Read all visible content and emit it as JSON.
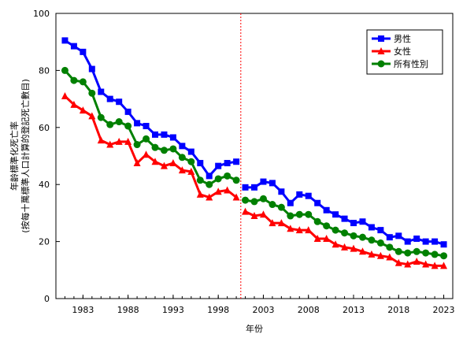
{
  "chart_data": {
    "type": "line",
    "xlabel": "年份",
    "ylabel_line1": "年齡標準化死亡率",
    "ylabel_line2": "(按每十萬標準人口計算的登記死亡數目)",
    "xlim": [
      1980,
      2024
    ],
    "ylim": [
      0,
      100
    ],
    "yticks": [
      0,
      20,
      40,
      60,
      80,
      100
    ],
    "xticks": [
      1983,
      1988,
      1993,
      1998,
      2003,
      2008,
      2013,
      2018,
      2023
    ],
    "break_year": 2000.5,
    "legend_position": "top-right",
    "grid": false,
    "series": [
      {
        "name": "男性",
        "color": "#0000ff",
        "marker": "square",
        "segments": [
          {
            "x": [
              1981,
              1982,
              1983,
              1984,
              1985,
              1986,
              1987,
              1988,
              1989,
              1990,
              1991,
              1992,
              1993,
              1994,
              1995,
              1996,
              1997,
              1998,
              1999,
              2000
            ],
            "y": [
              90.5,
              88.5,
              86.5,
              80.5,
              72.5,
              70.0,
              69.0,
              65.5,
              61.5,
              60.5,
              57.5,
              57.5,
              56.5,
              53.5,
              51.5,
              47.5,
              43.0,
              46.5,
              47.5,
              48.0
            ]
          },
          {
            "x": [
              2001,
              2002,
              2003,
              2004,
              2005,
              2006,
              2007,
              2008,
              2009,
              2010,
              2011,
              2012,
              2013,
              2014,
              2015,
              2016,
              2017,
              2018,
              2019,
              2020,
              2021,
              2022,
              2023
            ],
            "y": [
              39.0,
              39.0,
              41.0,
              40.5,
              37.5,
              33.5,
              36.5,
              36.0,
              33.5,
              31.0,
              29.5,
              28.0,
              26.5,
              27.0,
              25.0,
              24.0,
              21.5,
              22.0,
              20.0,
              21.0,
              20.0,
              20.0,
              19.0
            ]
          }
        ]
      },
      {
        "name": "女性",
        "color": "#ff0000",
        "marker": "triangle",
        "segments": [
          {
            "x": [
              1981,
              1982,
              1983,
              1984,
              1985,
              1986,
              1987,
              1988,
              1989,
              1990,
              1991,
              1992,
              1993,
              1994,
              1995,
              1996,
              1997,
              1998,
              1999,
              2000
            ],
            "y": [
              71.0,
              68.0,
              66.0,
              64.0,
              55.5,
              54.0,
              55.0,
              55.0,
              47.5,
              50.5,
              48.0,
              46.5,
              47.5,
              45.0,
              44.5,
              36.5,
              35.5,
              37.5,
              38.0,
              35.5
            ]
          },
          {
            "x": [
              2001,
              2002,
              2003,
              2004,
              2005,
              2006,
              2007,
              2008,
              2009,
              2010,
              2011,
              2012,
              2013,
              2014,
              2015,
              2016,
              2017,
              2018,
              2019,
              2020,
              2021,
              2022,
              2023
            ],
            "y": [
              30.5,
              29.0,
              29.5,
              26.5,
              26.5,
              24.5,
              24.0,
              24.0,
              21.0,
              21.0,
              19.0,
              18.0,
              17.5,
              16.5,
              15.5,
              15.0,
              14.5,
              12.5,
              12.0,
              13.0,
              12.0,
              11.5,
              11.5
            ]
          }
        ]
      },
      {
        "name": "所有性別",
        "color": "#008000",
        "marker": "circle",
        "segments": [
          {
            "x": [
              1981,
              1982,
              1983,
              1984,
              1985,
              1986,
              1987,
              1988,
              1989,
              1990,
              1991,
              1992,
              1993,
              1994,
              1995,
              1996,
              1997,
              1998,
              1999,
              2000
            ],
            "y": [
              80.0,
              76.5,
              76.0,
              72.0,
              63.5,
              61.0,
              62.0,
              60.5,
              54.0,
              56.0,
              53.0,
              52.0,
              52.5,
              49.5,
              48.0,
              41.5,
              40.0,
              42.0,
              43.0,
              41.5
            ]
          },
          {
            "x": [
              2001,
              2002,
              2003,
              2004,
              2005,
              2006,
              2007,
              2008,
              2009,
              2010,
              2011,
              2012,
              2013,
              2014,
              2015,
              2016,
              2017,
              2018,
              2019,
              2020,
              2021,
              2022,
              2023
            ],
            "y": [
              34.5,
              34.0,
              35.0,
              33.0,
              32.0,
              29.0,
              29.5,
              29.5,
              27.0,
              25.5,
              24.0,
              23.0,
              22.0,
              21.5,
              20.5,
              19.5,
              18.0,
              16.5,
              16.0,
              16.5,
              16.0,
              15.5,
              15.0
            ]
          }
        ]
      }
    ]
  }
}
